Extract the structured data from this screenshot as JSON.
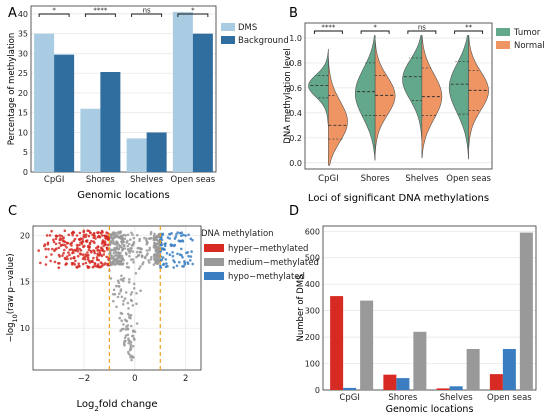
{
  "colors": {
    "dms_light": "#a9cce3",
    "background_dark": "#2f6e9e",
    "tumor": "#63a88a",
    "normal": "#ef9563",
    "hyper": "#d62a23",
    "medium": "#999999",
    "hypo": "#3a7ec1",
    "threshold": "#f0a020"
  },
  "chart_data": [
    {
      "panel": "A",
      "type": "bar",
      "categories": [
        "CpGI",
        "Shores",
        "Shelves",
        "Open seas"
      ],
      "series": [
        {
          "name": "DMS",
          "values": [
            35,
            16,
            8.5,
            40.5
          ]
        },
        {
          "name": "Background",
          "values": [
            29.7,
            25.3,
            10,
            35
          ]
        }
      ],
      "significance": [
        "*",
        "****",
        "ns",
        "*"
      ],
      "xlabel": "Genomic locations",
      "ylabel": "Percentage of methylation",
      "ylim": [
        0,
        42
      ],
      "yticks": [
        0,
        5,
        10,
        15,
        20,
        25,
        30,
        35,
        40
      ],
      "legend": "top-right"
    },
    {
      "panel": "B",
      "type": "violin",
      "categories": [
        "CpGI",
        "Shores",
        "Shelves",
        "Open seas"
      ],
      "series": [
        {
          "name": "Tumor",
          "quartiles": [
            [
              0.52,
              0.62,
              0.7
            ],
            [
              0.38,
              0.57,
              0.8
            ],
            [
              0.5,
              0.69,
              0.84
            ],
            [
              0.39,
              0.63,
              0.81
            ]
          ]
        },
        {
          "name": "Normal",
          "quartiles": [
            [
              0.19,
              0.3,
              0.54
            ],
            [
              0.38,
              0.54,
              0.7
            ],
            [
              0.38,
              0.53,
              0.76
            ],
            [
              0.42,
              0.58,
              0.74
            ]
          ]
        }
      ],
      "significance": [
        "****",
        "*",
        "ns",
        "**"
      ],
      "xlabel": "Loci of significant DNA methylations",
      "ylabel": "DNA methylation level",
      "ylim": [
        -0.05,
        1.12
      ],
      "yticks": [
        "0.0",
        "0.2",
        "0.4",
        "0.6",
        "0.8",
        "1.0"
      ],
      "ytick_values": [
        0,
        0.2,
        0.4,
        0.6,
        0.8,
        1.0
      ],
      "legend": "top-right"
    },
    {
      "panel": "C",
      "type": "scatter",
      "xlabel_prefix": "Log",
      "xlabel_sub": "2",
      "xlabel_suffix": "fold change",
      "ylabel_prefix": "−log",
      "ylabel_sub": "10",
      "ylabel_suffix": "(raw p−value)",
      "xticks": [
        "−2",
        "0",
        "2"
      ],
      "xtick_values": [
        -2,
        0,
        2
      ],
      "yticks": [
        "10",
        "15",
        "20"
      ],
      "ytick_values": [
        10,
        15,
        20
      ],
      "xlim": [
        -4,
        2.6
      ],
      "ylim": [
        5.5,
        21
      ],
      "thresholds": [
        -1,
        1
      ],
      "legend_title": "DNA methylation",
      "series": [
        {
          "name": "hyper−methylated",
          "x_range": [
            -3.8,
            -1
          ],
          "y_range": [
            16.5,
            20.5
          ],
          "count": 260
        },
        {
          "name": "medium−methylated",
          "x_range": [
            -1,
            1
          ],
          "y_range": [
            6,
            20.5
          ],
          "count": 420
        },
        {
          "name": "hypo−methylated",
          "x_range": [
            1,
            2.3
          ],
          "y_range": [
            16.5,
            20.3
          ],
          "count": 90
        }
      ],
      "legend": "top-right"
    },
    {
      "panel": "D",
      "type": "bar",
      "categories": [
        "CpGI",
        "Shores",
        "Shelves",
        "Open seas"
      ],
      "series": [
        {
          "name": "hyper−methylated",
          "values": [
            355,
            58,
            6,
            60
          ]
        },
        {
          "name": "hypo−methylated",
          "values": [
            8,
            45,
            14,
            155
          ]
        },
        {
          "name": "medium−methylated",
          "values": [
            338,
            220,
            155,
            595
          ]
        }
      ],
      "xlabel": "Genomic locations",
      "ylabel": "Number of DMS",
      "ylim": [
        0,
        620
      ],
      "yticks": [
        0,
        100,
        200,
        300,
        400,
        500,
        600
      ]
    }
  ],
  "panels": {
    "a": {
      "label": "A"
    },
    "b": {
      "label": "B"
    },
    "c": {
      "label": "C"
    },
    "d": {
      "label": "D"
    }
  }
}
